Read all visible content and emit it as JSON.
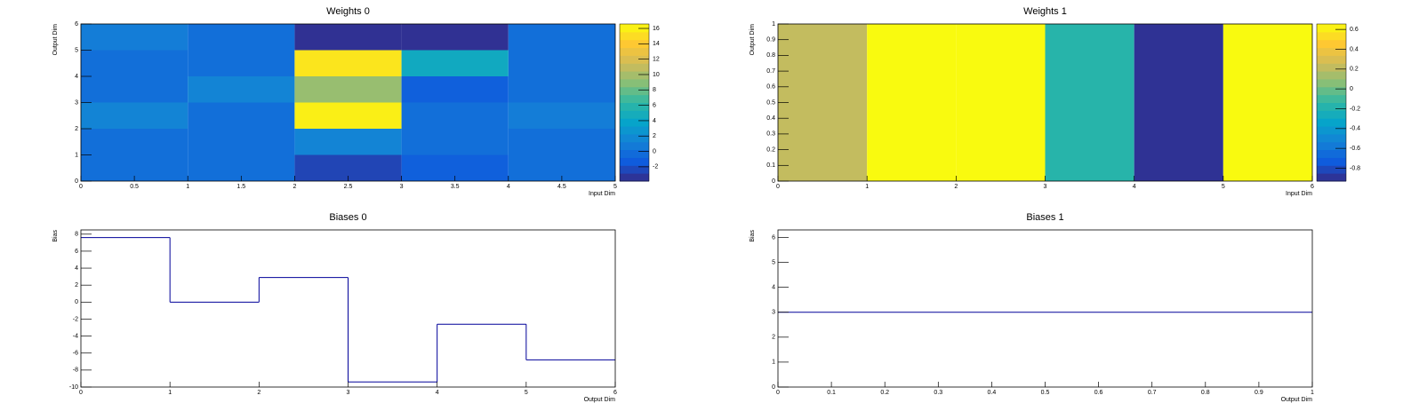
{
  "chart_data": [
    {
      "type": "heatmap",
      "title": "Weights 0",
      "xlabel": "Input Dim",
      "ylabel": "Output Dim",
      "xbins": [
        0,
        1,
        2,
        3,
        4,
        5
      ],
      "ybins": [
        0,
        1,
        2,
        3,
        4,
        5,
        6
      ],
      "values": [
        [
          0,
          0,
          -2.5,
          -1,
          0
        ],
        [
          0,
          0,
          1.5,
          0,
          0
        ],
        [
          1.5,
          0,
          16,
          0,
          1
        ],
        [
          0,
          1.5,
          9.5,
          -1,
          0
        ],
        [
          0,
          0,
          15.5,
          4.5,
          0
        ],
        [
          1,
          0,
          -3.5,
          -3.5,
          0
        ]
      ],
      "xlim": [
        0,
        5
      ],
      "ylim": [
        0,
        6
      ],
      "zlim": [
        -3.86,
        16.58
      ],
      "xticks": [
        0,
        0.5,
        1,
        1.5,
        2,
        2.5,
        3,
        3.5,
        4,
        4.5,
        5
      ],
      "yticks": [
        0,
        1,
        2,
        3,
        4,
        5,
        6
      ],
      "zticks": [
        -2,
        0,
        2,
        4,
        6,
        8,
        10,
        12,
        14,
        16
      ],
      "colorscale": [
        "#352a87",
        "#0f5cdd",
        "#1481d6",
        "#06a4ca",
        "#2eb7a4",
        "#87bf77",
        "#d1bb59",
        "#fec832",
        "#f9fb0e"
      ]
    },
    {
      "type": "heatmap",
      "title": "Weights 1",
      "xlabel": "Input Dim",
      "ylabel": "Output Dim",
      "xbins": [
        0,
        1,
        2,
        3,
        4,
        5,
        6
      ],
      "ybins": [
        0,
        1
      ],
      "values": [
        [
          0.22,
          0.65,
          0.65,
          -0.17,
          -0.9,
          0.65
        ]
      ],
      "xlim": [
        0,
        6
      ],
      "ylim": [
        0,
        1
      ],
      "zlim": [
        -0.93,
        0.655
      ],
      "xticks": [
        0,
        1,
        2,
        3,
        4,
        5,
        6
      ],
      "yticks": [
        0,
        0.1,
        0.2,
        0.3,
        0.4,
        0.5,
        0.6,
        0.7,
        0.8,
        0.9,
        1
      ],
      "zticks": [
        -0.8,
        -0.6,
        -0.4,
        -0.2,
        0,
        0.2,
        0.4,
        0.6
      ],
      "colorscale": [
        "#352a87",
        "#0f5cdd",
        "#1481d6",
        "#06a4ca",
        "#2eb7a4",
        "#87bf77",
        "#d1bb59",
        "#fec832",
        "#f9fb0e"
      ]
    },
    {
      "type": "histogram",
      "title": "Biases 0",
      "xlabel": "Output Dim",
      "ylabel": "Bias",
      "bins": [
        0,
        1,
        2,
        3,
        4,
        5,
        6
      ],
      "values": [
        7.6,
        0,
        2.9,
        -9.4,
        -2.6,
        -6.8
      ],
      "color": "#000099",
      "xlim": [
        0,
        6
      ],
      "ylim": [
        -10,
        8.5
      ],
      "xticks": [
        0,
        1,
        2,
        3,
        4,
        5,
        6
      ],
      "yticks": [
        -10,
        -8,
        -6,
        -4,
        -2,
        0,
        2,
        4,
        6,
        8
      ]
    },
    {
      "type": "histogram",
      "title": "Biases 1",
      "xlabel": "Output Dim",
      "ylabel": "Bias",
      "bins": [
        0,
        1
      ],
      "values": [
        3
      ],
      "color": "#000099",
      "xlim": [
        0,
        1
      ],
      "ylim": [
        0,
        6.3
      ],
      "xticks": [
        0,
        0.1,
        0.2,
        0.3,
        0.4,
        0.5,
        0.6,
        0.7,
        0.8,
        0.9,
        1
      ],
      "yticks": [
        0,
        1,
        2,
        3,
        4,
        5,
        6
      ]
    }
  ]
}
